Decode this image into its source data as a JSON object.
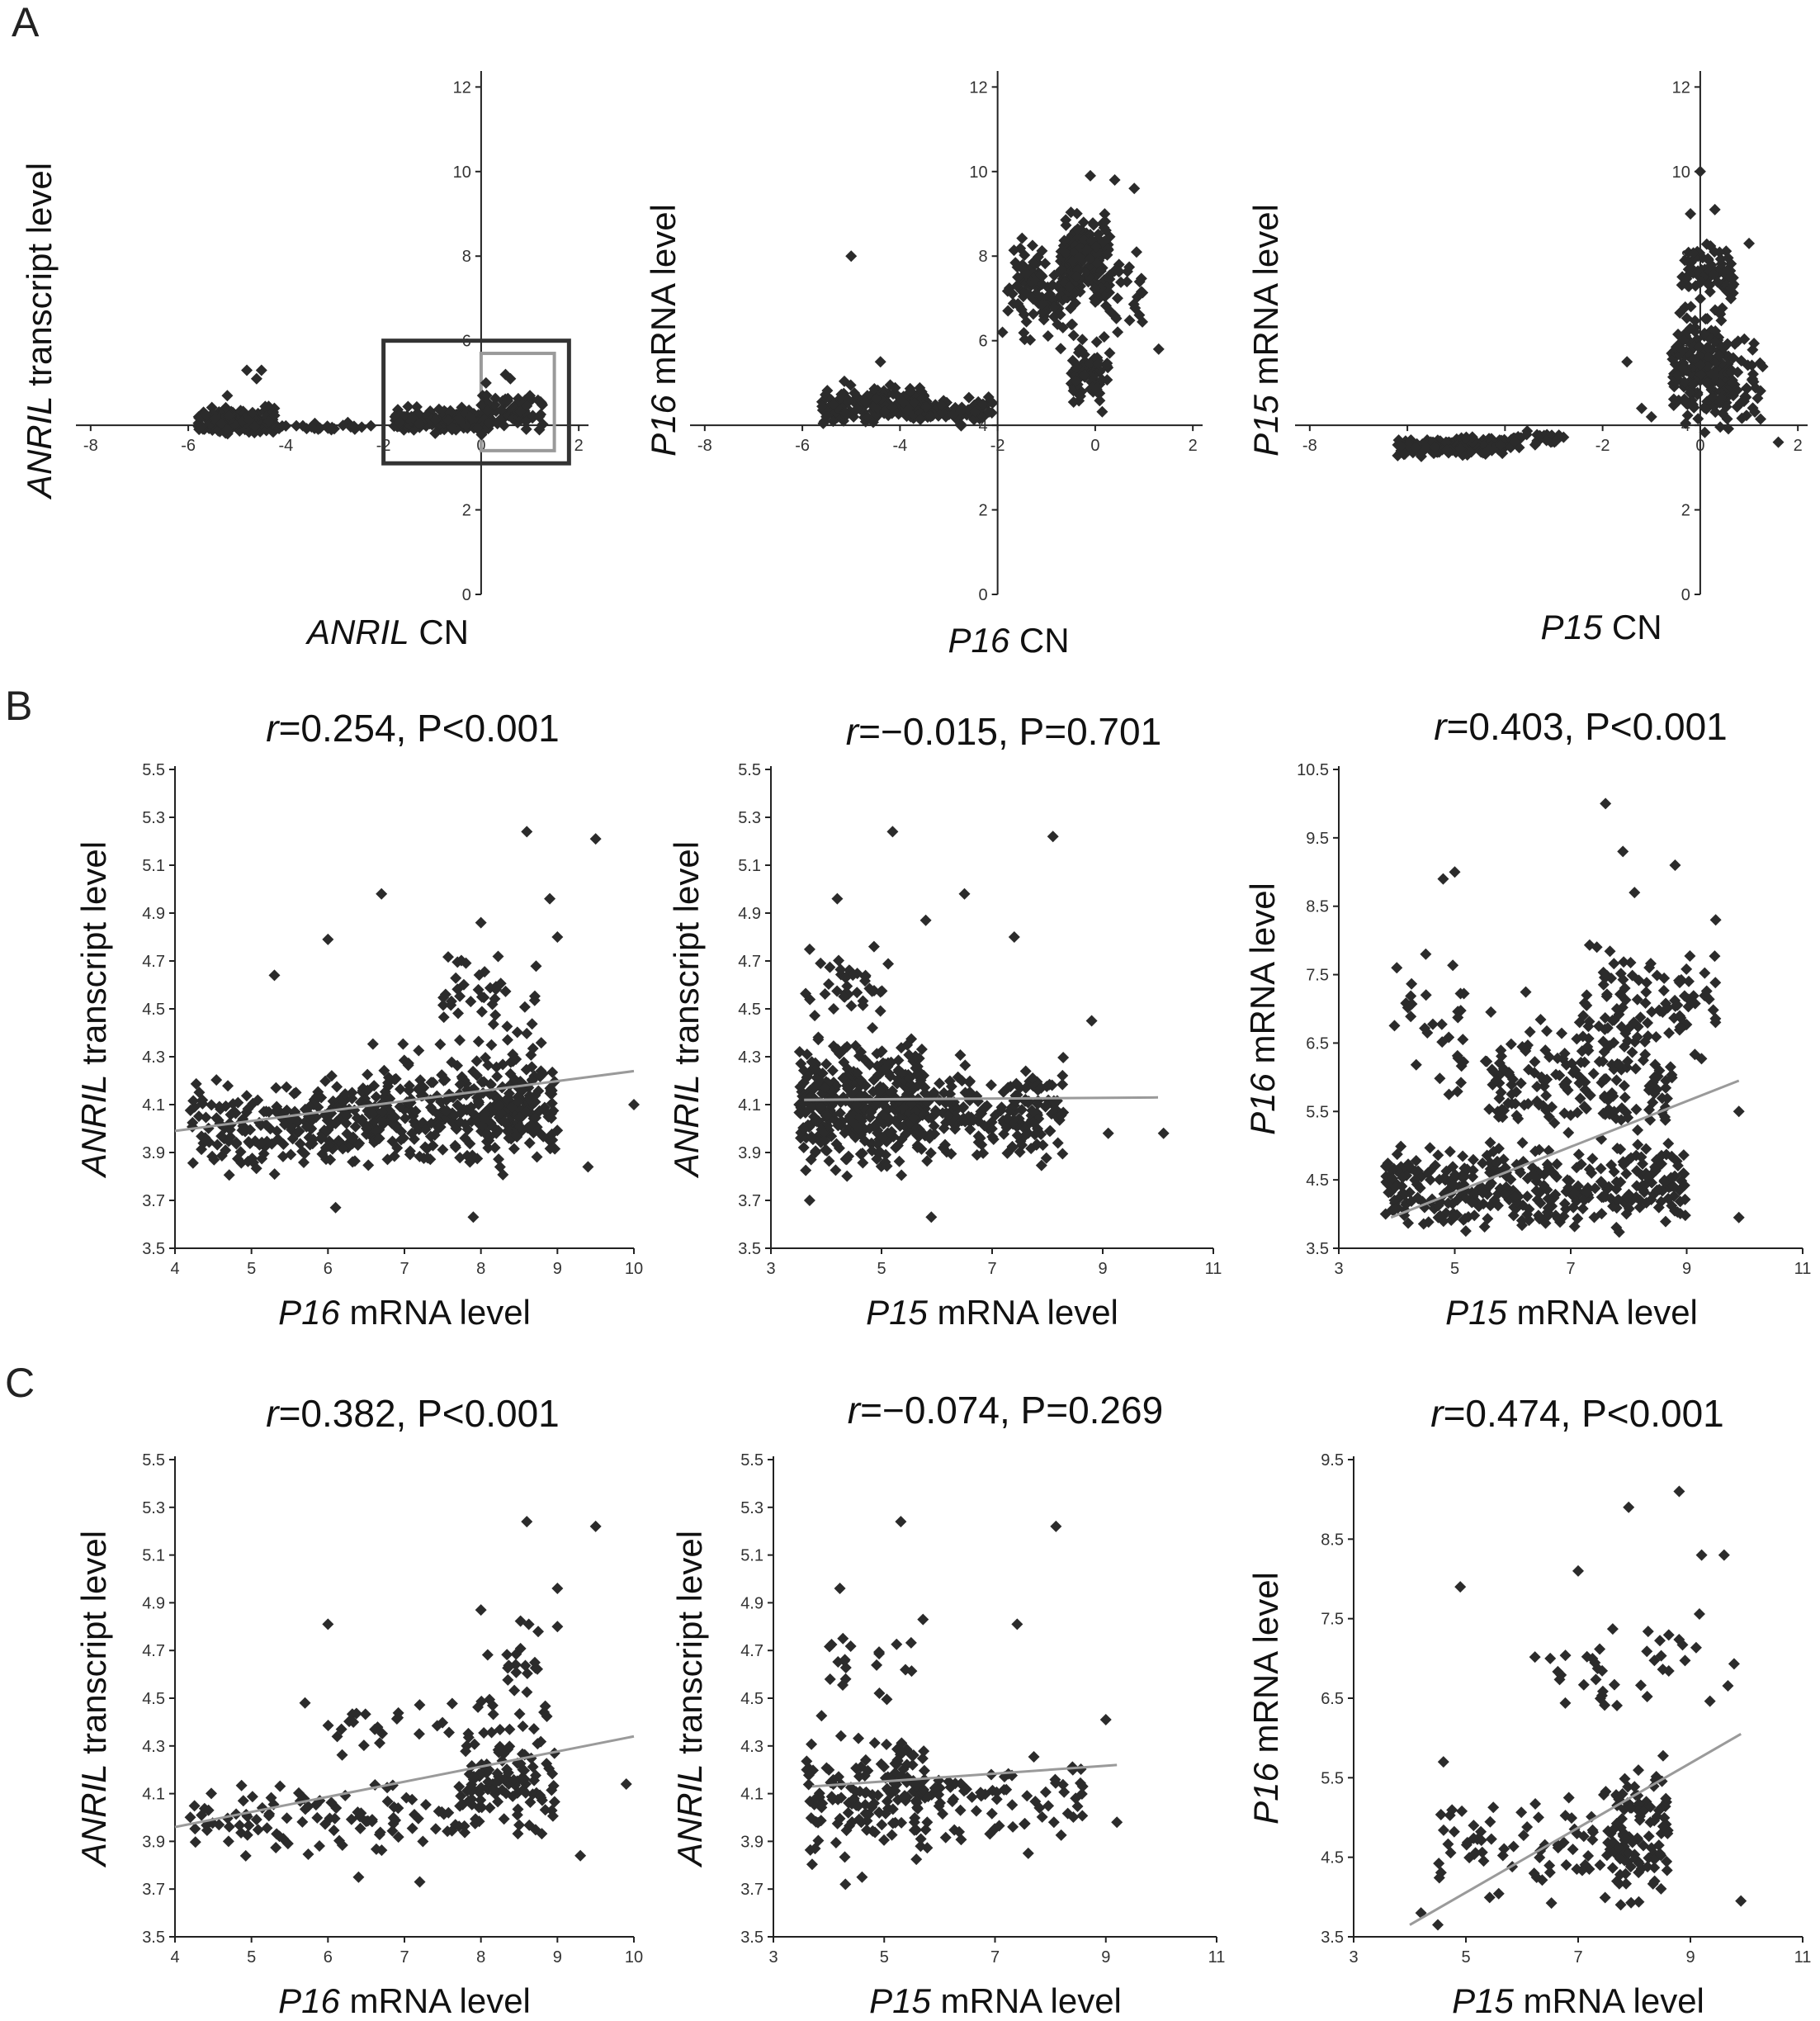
{
  "figure": {
    "panel_labels": [
      "A",
      "B",
      "C"
    ],
    "colors": {
      "point": "#2b2b2b",
      "trend_line": "#9a9a9a",
      "axis": "#222222",
      "box_dark": "#333333",
      "box_light": "#9a9a9a"
    }
  },
  "chart_data": [
    {
      "id": "A1",
      "type": "scatter",
      "panel": "A",
      "xlabel": {
        "gene": "ANRIL",
        "rest": " CN"
      },
      "ylabel": {
        "gene": "ANRIL",
        "rest": " transcript level"
      },
      "xticks": [
        -8,
        -6,
        -4,
        -2,
        0,
        2
      ],
      "yticks": [
        0,
        2,
        4,
        6,
        8,
        10,
        12
      ],
      "xlim": [
        -8.2,
        2.2
      ],
      "ylim": [
        0,
        12.3
      ],
      "x_axis_at_y": 4,
      "y_axis_at_x": 0,
      "boxes": [
        {
          "x": [
            -2,
            1.8
          ],
          "y": [
            3.1,
            6.0
          ],
          "color": "dark"
        },
        {
          "x": [
            0,
            1.5
          ],
          "y": [
            3.4,
            5.7
          ],
          "color": "light"
        }
      ],
      "clusters": [
        {
          "n": 180,
          "x": [
            -5.8,
            -4.2
          ],
          "y": [
            3.7,
            4.5
          ]
        },
        {
          "n": 25,
          "x": [
            -4.2,
            -2.2
          ],
          "y": [
            3.8,
            4.1
          ]
        },
        {
          "n": 200,
          "x": [
            -1.8,
            0.2
          ],
          "y": [
            3.7,
            4.5
          ]
        },
        {
          "n": 80,
          "x": [
            0.0,
            1.3
          ],
          "y": [
            3.8,
            4.9
          ]
        }
      ],
      "points": [
        [
          -4.8,
          5.3
        ],
        [
          -4.5,
          5.3
        ],
        [
          -4.6,
          5.1
        ],
        [
          -5.2,
          4.7
        ],
        [
          0.5,
          5.2
        ],
        [
          0.6,
          5.1
        ],
        [
          0.1,
          5.0
        ],
        [
          1.0,
          4.7
        ]
      ]
    },
    {
      "id": "A2",
      "type": "scatter",
      "panel": "A",
      "xlabel": {
        "gene": "P16",
        "rest": " CN"
      },
      "ylabel": {
        "gene": "P16",
        "rest": " mRNA level"
      },
      "xticks": [
        -8,
        -6,
        -4,
        -2,
        0,
        2
      ],
      "yticks": [
        0,
        2,
        4,
        6,
        8,
        10,
        12
      ],
      "xlim": [
        -8.2,
        2.2
      ],
      "ylim": [
        0,
        12.3
      ],
      "x_axis_at_y": 4,
      "y_axis_at_x": -2,
      "clusters": [
        {
          "n": 170,
          "x": [
            -5.6,
            -3.4
          ],
          "y": [
            3.9,
            5.1
          ]
        },
        {
          "n": 60,
          "x": [
            -3.6,
            -2.1
          ],
          "y": [
            3.9,
            4.8
          ]
        },
        {
          "n": 120,
          "x": [
            -1.8,
            -0.3
          ],
          "y": [
            5.5,
            8.8
          ]
        },
        {
          "n": 160,
          "x": [
            -0.7,
            0.3
          ],
          "y": [
            6.5,
            9.4
          ]
        },
        {
          "n": 70,
          "x": [
            -0.5,
            0.3
          ],
          "y": [
            4.0,
            6.5
          ]
        },
        {
          "n": 25,
          "x": [
            0.3,
            1.0
          ],
          "y": [
            5.5,
            9.0
          ]
        }
      ],
      "points": [
        [
          -5.0,
          8.0
        ],
        [
          -4.4,
          5.5
        ],
        [
          -1.9,
          6.2
        ],
        [
          -2.3,
          4.5
        ],
        [
          -0.1,
          9.9
        ],
        [
          0.4,
          9.8
        ],
        [
          0.8,
          9.6
        ],
        [
          1.3,
          5.8
        ]
      ]
    },
    {
      "id": "A3",
      "type": "scatter",
      "panel": "A",
      "xlabel": {
        "gene": "P15",
        "rest": " CN"
      },
      "ylabel": {
        "gene": "P15",
        "rest": " mRNA level"
      },
      "xticks": [
        -8,
        -6,
        -4,
        -2,
        0,
        2
      ],
      "yticks": [
        0,
        2,
        4,
        6,
        8,
        10,
        12
      ],
      "xlim": [
        -8.2,
        2.2
      ],
      "ylim": [
        0,
        12.3
      ],
      "x_axis_at_y": 4,
      "y_axis_at_x": 0,
      "clusters": [
        {
          "n": 180,
          "x": [
            -6.2,
            -4.0
          ],
          "y": [
            3.2,
            3.8
          ]
        },
        {
          "n": 30,
          "x": [
            -4.0,
            -2.6
          ],
          "y": [
            3.4,
            3.9
          ]
        },
        {
          "n": 200,
          "x": [
            -0.6,
            0.6
          ],
          "y": [
            3.5,
            7.2
          ]
        },
        {
          "n": 70,
          "x": [
            -0.4,
            0.7
          ],
          "y": [
            6.5,
            8.7
          ]
        },
        {
          "n": 40,
          "x": [
            0.6,
            1.3
          ],
          "y": [
            3.5,
            6.5
          ]
        }
      ],
      "points": [
        [
          0.0,
          10.0
        ],
        [
          -0.2,
          9.0
        ],
        [
          0.3,
          9.1
        ],
        [
          1.0,
          8.3
        ],
        [
          -1.5,
          5.5
        ],
        [
          -1.2,
          4.4
        ],
        [
          -1.0,
          4.2
        ],
        [
          1.6,
          3.6
        ]
      ]
    },
    {
      "id": "B1",
      "type": "scatter",
      "panel": "B",
      "title": {
        "r": "r",
        "rest": "=0.254, P<0.001"
      },
      "xlabel": {
        "gene": "P16",
        "rest": " mRNA level"
      },
      "ylabel": {
        "gene": "ANRIL",
        "rest": " transcript level"
      },
      "xticks": [
        4,
        5,
        6,
        7,
        8,
        9,
        10
      ],
      "yticks": [
        "3.5",
        "3.7",
        "3.9",
        "4.1",
        "4.3",
        "4.5",
        "4.7",
        "4.9",
        "5.1",
        "5.3",
        "5.5"
      ],
      "xlim": [
        4,
        10
      ],
      "ylim": [
        3.5,
        5.5
      ],
      "trend": {
        "x": [
          4,
          10
        ],
        "y": [
          3.99,
          4.24
        ]
      },
      "clusters": [
        {
          "n": 420,
          "x": [
            4.2,
            9.0
          ],
          "y": [
            3.75,
            4.3
          ]
        },
        {
          "n": 150,
          "x": [
            6.5,
            9.0
          ],
          "y": [
            3.85,
            4.45
          ]
        },
        {
          "n": 40,
          "x": [
            7.5,
            8.8
          ],
          "y": [
            4.3,
            4.8
          ]
        }
      ],
      "points": [
        [
          8.6,
          5.24
        ],
        [
          9.5,
          5.21
        ],
        [
          6.7,
          4.98
        ],
        [
          8.9,
          4.96
        ],
        [
          6.0,
          4.79
        ],
        [
          8.0,
          4.86
        ],
        [
          9.0,
          4.8
        ],
        [
          5.3,
          4.64
        ],
        [
          9.4,
          3.84
        ],
        [
          10.0,
          4.1
        ],
        [
          7.9,
          3.63
        ],
        [
          6.1,
          3.67
        ]
      ]
    },
    {
      "id": "B2",
      "type": "scatter",
      "panel": "B",
      "title": {
        "r": "r",
        "rest": "=−0.015, P=0.701"
      },
      "xlabel": {
        "gene": "P15",
        "rest": " mRNA level"
      },
      "ylabel": {
        "gene": "ANRIL",
        "rest": " transcript level"
      },
      "xticks": [
        3,
        5,
        7,
        9,
        11
      ],
      "yticks": [
        "3.5",
        "3.7",
        "3.9",
        "4.1",
        "4.3",
        "4.5",
        "4.7",
        "4.9",
        "5.1",
        "5.3",
        "5.5"
      ],
      "xlim": [
        3,
        11
      ],
      "ylim": [
        3.5,
        5.5
      ],
      "trend": {
        "x": [
          3.6,
          10.0
        ],
        "y": [
          4.12,
          4.13
        ]
      },
      "clusters": [
        {
          "n": 380,
          "x": [
            3.5,
            5.8
          ],
          "y": [
            3.75,
            4.45
          ]
        },
        {
          "n": 200,
          "x": [
            5.5,
            8.3
          ],
          "y": [
            3.8,
            4.35
          ]
        },
        {
          "n": 40,
          "x": [
            3.6,
            5.2
          ],
          "y": [
            4.4,
            4.8
          ]
        }
      ],
      "points": [
        [
          5.2,
          5.24
        ],
        [
          8.1,
          5.22
        ],
        [
          6.5,
          4.98
        ],
        [
          4.2,
          4.96
        ],
        [
          5.8,
          4.87
        ],
        [
          7.4,
          4.8
        ],
        [
          8.8,
          4.45
        ],
        [
          9.1,
          3.98
        ],
        [
          10.1,
          3.98
        ],
        [
          5.9,
          3.63
        ],
        [
          3.7,
          3.7
        ]
      ]
    },
    {
      "id": "B3",
      "type": "scatter",
      "panel": "B",
      "title": {
        "r": "r",
        "rest": "=0.403, P<0.001"
      },
      "xlabel": {
        "gene": "P15",
        "rest": " mRNA level"
      },
      "ylabel": {
        "gene": "P16",
        "rest": " mRNA level"
      },
      "xticks": [
        3,
        5,
        7,
        9,
        11
      ],
      "yticks": [
        "3.5",
        "4.5",
        "5.5",
        "6.5",
        "7.5",
        "8.5",
        "9.5",
        "10.5"
      ],
      "xlim": [
        3,
        11
      ],
      "ylim": [
        3.5,
        10.5
      ],
      "trend": {
        "x": [
          3.9,
          9.9
        ],
        "y": [
          3.95,
          5.95
        ]
      },
      "clusters": [
        {
          "n": 350,
          "x": [
            3.8,
            9.0
          ],
          "y": [
            3.55,
            5.2
          ]
        },
        {
          "n": 180,
          "x": [
            5.5,
            8.8
          ],
          "y": [
            4.5,
            7.3
          ]
        },
        {
          "n": 90,
          "x": [
            7.2,
            9.5
          ],
          "y": [
            6.0,
            8.3
          ]
        },
        {
          "n": 30,
          "x": [
            3.9,
            5.2
          ],
          "y": [
            5.5,
            7.9
          ]
        }
      ],
      "points": [
        [
          7.6,
          10.0
        ],
        [
          7.9,
          9.3
        ],
        [
          8.8,
          9.1
        ],
        [
          4.8,
          8.9
        ],
        [
          5.0,
          9.0
        ],
        [
          8.1,
          8.7
        ],
        [
          4.0,
          7.6
        ],
        [
          4.5,
          7.8
        ],
        [
          9.5,
          8.3
        ],
        [
          9.9,
          5.5
        ],
        [
          9.9,
          3.95
        ]
      ]
    },
    {
      "id": "C1",
      "type": "scatter",
      "panel": "C",
      "title": {
        "r": "r",
        "rest": "=0.382, P<0.001"
      },
      "xlabel": {
        "gene": "P16",
        "rest": " mRNA level"
      },
      "ylabel": {
        "gene": "ANRIL",
        "rest": " transcript level"
      },
      "xticks": [
        4,
        5,
        6,
        7,
        8,
        9,
        10
      ],
      "yticks": [
        "3.5",
        "3.7",
        "3.9",
        "4.1",
        "4.3",
        "4.5",
        "4.7",
        "4.9",
        "5.1",
        "5.3",
        "5.5"
      ],
      "xlim": [
        4,
        10
      ],
      "ylim": [
        3.5,
        5.5
      ],
      "trend": {
        "x": [
          4,
          10
        ],
        "y": [
          3.96,
          4.34
        ]
      },
      "clusters": [
        {
          "n": 110,
          "x": [
            4.2,
            8.0
          ],
          "y": [
            3.8,
            4.2
          ]
        },
        {
          "n": 100,
          "x": [
            7.8,
            9.0
          ],
          "y": [
            3.85,
            4.4
          ]
        },
        {
          "n": 40,
          "x": [
            6.0,
            9.0
          ],
          "y": [
            4.2,
            4.6
          ]
        },
        {
          "n": 20,
          "x": [
            8.0,
            8.8
          ],
          "y": [
            4.4,
            4.9
          ]
        }
      ],
      "points": [
        [
          8.6,
          5.24
        ],
        [
          9.5,
          5.22
        ],
        [
          9.0,
          4.96
        ],
        [
          6.0,
          4.81
        ],
        [
          8.0,
          4.87
        ],
        [
          9.0,
          4.8
        ],
        [
          5.7,
          4.48
        ],
        [
          9.9,
          4.14
        ],
        [
          9.3,
          3.84
        ],
        [
          7.2,
          3.73
        ],
        [
          6.4,
          3.75
        ],
        [
          4.7,
          3.9
        ]
      ]
    },
    {
      "id": "C2",
      "type": "scatter",
      "panel": "C",
      "title": {
        "r": "r",
        "rest": "=−0.074, P=0.269"
      },
      "xlabel": {
        "gene": "P15",
        "rest": " mRNA level"
      },
      "ylabel": {
        "gene": "ANRIL",
        "rest": " transcript level"
      },
      "xticks": [
        3,
        5,
        7,
        9,
        11
      ],
      "yticks": [
        "3.5",
        "3.7",
        "3.9",
        "4.1",
        "4.3",
        "4.5",
        "4.7",
        "4.9",
        "5.1",
        "5.3",
        "5.5"
      ],
      "xlim": [
        3,
        11
      ],
      "ylim": [
        3.5,
        5.5
      ],
      "trend": {
        "x": [
          3.7,
          9.2
        ],
        "y": [
          4.13,
          4.22
        ]
      },
      "clusters": [
        {
          "n": 140,
          "x": [
            3.6,
            5.8
          ],
          "y": [
            3.75,
            4.45
          ]
        },
        {
          "n": 80,
          "x": [
            5.5,
            8.6
          ],
          "y": [
            3.85,
            4.3
          ]
        },
        {
          "n": 20,
          "x": [
            4.0,
            5.6
          ],
          "y": [
            4.45,
            4.85
          ]
        }
      ],
      "points": [
        [
          5.3,
          5.24
        ],
        [
          8.1,
          5.22
        ],
        [
          4.2,
          4.96
        ],
        [
          7.4,
          4.81
        ],
        [
          5.7,
          4.83
        ],
        [
          9.0,
          4.41
        ],
        [
          9.2,
          3.98
        ],
        [
          7.6,
          3.85
        ],
        [
          4.6,
          3.75
        ],
        [
          4.3,
          3.72
        ]
      ]
    },
    {
      "id": "C3",
      "type": "scatter",
      "panel": "C",
      "title": {
        "r": "r",
        "rest": "=0.474, P<0.001"
      },
      "xlabel": {
        "gene": "P15",
        "rest": " mRNA level"
      },
      "ylabel": {
        "gene": "P16",
        "rest": " mRNA  level"
      },
      "xticks": [
        3,
        5,
        7,
        9,
        11
      ],
      "yticks": [
        "3.5",
        "4.5",
        "5.5",
        "6.5",
        "7.5",
        "8.5",
        "9.5"
      ],
      "xlim": [
        3,
        11
      ],
      "ylim": [
        3.5,
        9.5
      ],
      "trend": {
        "x": [
          4.0,
          9.9
        ],
        "y": [
          3.65,
          6.05
        ]
      },
      "clusters": [
        {
          "n": 90,
          "x": [
            4.5,
            8.5
          ],
          "y": [
            3.6,
            5.6
          ]
        },
        {
          "n": 90,
          "x": [
            7.6,
            8.6
          ],
          "y": [
            3.8,
            5.9
          ]
        },
        {
          "n": 40,
          "x": [
            6.2,
            9.8
          ],
          "y": [
            5.8,
            8.0
          ]
        }
      ],
      "points": [
        [
          8.8,
          9.1
        ],
        [
          7.9,
          8.9
        ],
        [
          9.2,
          8.3
        ],
        [
          9.6,
          8.3
        ],
        [
          4.9,
          7.9
        ],
        [
          7.0,
          8.1
        ],
        [
          9.9,
          3.95
        ],
        [
          4.6,
          5.7
        ],
        [
          4.2,
          3.8
        ],
        [
          4.5,
          3.65
        ]
      ]
    }
  ]
}
